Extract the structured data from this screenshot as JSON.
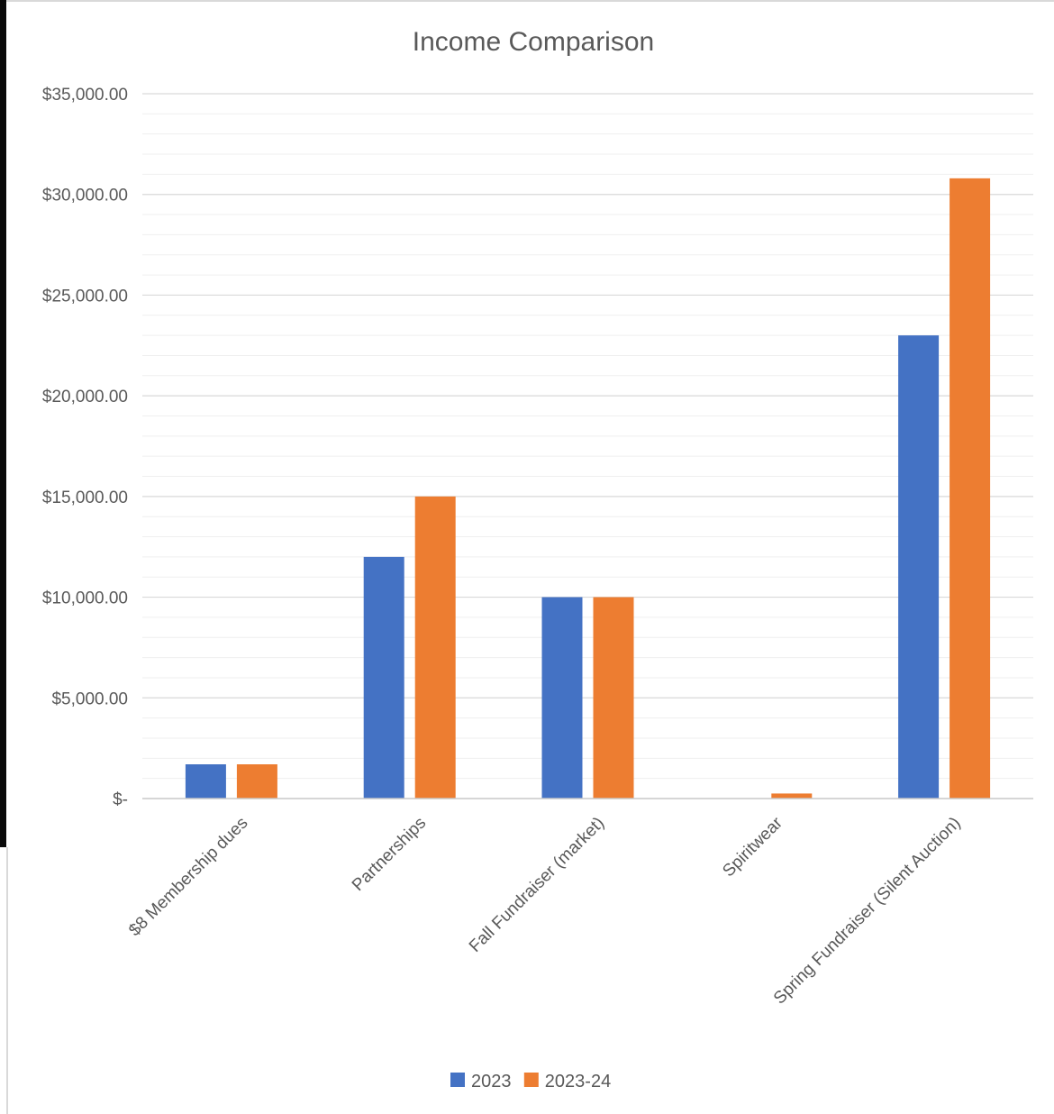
{
  "chart_data": {
    "type": "bar",
    "title": "Income Comparison",
    "xlabel": "",
    "ylabel": "",
    "categories": [
      "$8 Membership dues",
      "Partnerships",
      "Fall Fundraiser (market)",
      "Spiritwear",
      "Spring Fundraiser (Silent Auction)"
    ],
    "series": [
      {
        "name": "2023",
        "color": "#4472c4",
        "values": [
          1700,
          12000,
          10000,
          0,
          23000
        ]
      },
      {
        "name": "2023-24",
        "color": "#ed7d31",
        "values": [
          1700,
          15000,
          10000,
          250,
          30800
        ]
      }
    ],
    "ylim": [
      0,
      35000
    ],
    "y_ticks": [
      0,
      5000,
      10000,
      15000,
      20000,
      25000,
      30000,
      35000
    ],
    "y_tick_labels": [
      "$-",
      "$5,000.00",
      "$10,000.00",
      "$15,000.00",
      "$20,000.00",
      "$25,000.00",
      "$30,000.00",
      "$35,000.00"
    ],
    "grid": true,
    "legend_position": "bottom"
  }
}
